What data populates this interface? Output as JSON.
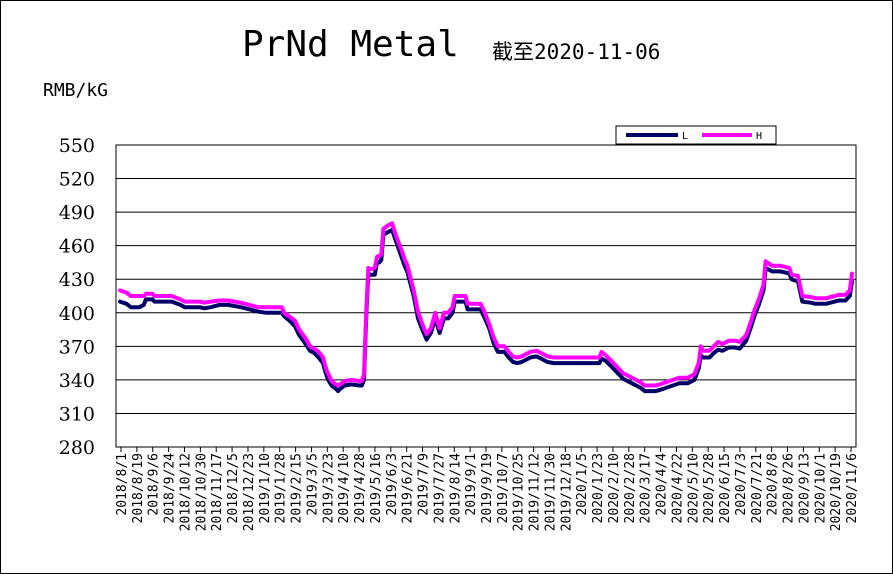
{
  "chart_data": {
    "type": "line",
    "title": "PrNd Metal",
    "subtitle": "截至2020-11-06",
    "ylabel": "RMB/kG",
    "ylim": [
      280,
      550
    ],
    "yticks": [
      550,
      520,
      490,
      460,
      430,
      400,
      370,
      340,
      310,
      280
    ],
    "grid": true,
    "legend_position": "top-right",
    "x_tick_labels": [
      "2018/8/1",
      "2018/8/19",
      "2018/9/6",
      "2018/9/24",
      "2018/10/12",
      "2018/10/30",
      "2018/11/17",
      "2018/12/5",
      "2018/12/23",
      "2019/1/10",
      "2019/1/28",
      "2019/2/15",
      "2019/3/5",
      "2019/3/23",
      "2019/4/10",
      "2019/4/28",
      "2019/5/16",
      "2019/6/3",
      "2019/6/21",
      "2019/7/9",
      "2019/7/27",
      "2019/8/14",
      "2019/9/1",
      "2019/9/19",
      "2019/10/7",
      "2019/10/25",
      "2019/11/12",
      "2019/11/30",
      "2019/12/18",
      "2020/1/5",
      "2020/1/23",
      "2020/2/10",
      "2020/2/28",
      "2020/3/17",
      "2020/4/4",
      "2020/4/22",
      "2020/5/10",
      "2020/5/28",
      "2020/6/15",
      "2020/7/3",
      "2020/7/21",
      "2020/8/8",
      "2020/8/26",
      "2020/9/13",
      "2020/10/1",
      "2020/10/19",
      "2020/11/6"
    ],
    "series": [
      {
        "name": "L",
        "color": "#000066",
        "points": [
          [
            0,
            410
          ],
          [
            3,
            408
          ],
          [
            5,
            405
          ],
          [
            9,
            405
          ],
          [
            11,
            407
          ],
          [
            12,
            412
          ],
          [
            15,
            412
          ],
          [
            16,
            410
          ],
          [
            24,
            410
          ],
          [
            28,
            407
          ],
          [
            30,
            405
          ],
          [
            37,
            405
          ],
          [
            39,
            404
          ],
          [
            42,
            405
          ],
          [
            46,
            407
          ],
          [
            50,
            407
          ],
          [
            56,
            405
          ],
          [
            60,
            403
          ],
          [
            64,
            401
          ],
          [
            68,
            400
          ],
          [
            75,
            400
          ],
          [
            76,
            397
          ],
          [
            79,
            392
          ],
          [
            81,
            388
          ],
          [
            83,
            380
          ],
          [
            86,
            372
          ],
          [
            88,
            366
          ],
          [
            90,
            364
          ],
          [
            92,
            360
          ],
          [
            94,
            355
          ],
          [
            95,
            348
          ],
          [
            96,
            342
          ],
          [
            97,
            338
          ],
          [
            98,
            335
          ],
          [
            100,
            332
          ],
          [
            101,
            330
          ],
          [
            102,
            332
          ],
          [
            104,
            335
          ],
          [
            107,
            336
          ],
          [
            111,
            335
          ],
          [
            112,
            335
          ],
          [
            113,
            340
          ],
          [
            114,
            395
          ],
          [
            115,
            435
          ],
          [
            116,
            434
          ],
          [
            118,
            434
          ],
          [
            119,
            445
          ],
          [
            120,
            445
          ],
          [
            121,
            447
          ],
          [
            122,
            470
          ],
          [
            124,
            472
          ],
          [
            126,
            474
          ],
          [
            128,
            463
          ],
          [
            130,
            452
          ],
          [
            132,
            441
          ],
          [
            133,
            437
          ],
          [
            136,
            415
          ],
          [
            138,
            395
          ],
          [
            140,
            385
          ],
          [
            142,
            376
          ],
          [
            144,
            382
          ],
          [
            146,
            395
          ],
          [
            148,
            382
          ],
          [
            150,
            395
          ],
          [
            152,
            395
          ],
          [
            154,
            400
          ],
          [
            155,
            410
          ],
          [
            158,
            410
          ],
          [
            160,
            410
          ],
          [
            161,
            403
          ],
          [
            164,
            403
          ],
          [
            167,
            403
          ],
          [
            169,
            395
          ],
          [
            171,
            386
          ],
          [
            173,
            373
          ],
          [
            175,
            365
          ],
          [
            178,
            365
          ],
          [
            180,
            360
          ],
          [
            182,
            356
          ],
          [
            184,
            355
          ],
          [
            186,
            356
          ],
          [
            188,
            358
          ],
          [
            190,
            360
          ],
          [
            193,
            361
          ],
          [
            195,
            359
          ],
          [
            198,
            356
          ],
          [
            201,
            355
          ],
          [
            204,
            355
          ],
          [
            208,
            355
          ],
          [
            212,
            355
          ],
          [
            216,
            355
          ],
          [
            220,
            355
          ],
          [
            222,
            355
          ],
          [
            223,
            359
          ],
          [
            225,
            357
          ],
          [
            227,
            353
          ],
          [
            229,
            349
          ],
          [
            231,
            345
          ],
          [
            233,
            341
          ],
          [
            235,
            339
          ],
          [
            237,
            337
          ],
          [
            239,
            335
          ],
          [
            241,
            333
          ],
          [
            243,
            330
          ],
          [
            245,
            330
          ],
          [
            248,
            330
          ],
          [
            250,
            331
          ],
          [
            253,
            333
          ],
          [
            256,
            335
          ],
          [
            259,
            337
          ],
          [
            263,
            337
          ],
          [
            266,
            340
          ],
          [
            268,
            350
          ],
          [
            269,
            362
          ],
          [
            270,
            360
          ],
          [
            271,
            360
          ],
          [
            273,
            360
          ],
          [
            275,
            364
          ],
          [
            277,
            367
          ],
          [
            279,
            366
          ],
          [
            282,
            369
          ],
          [
            285,
            369
          ],
          [
            287,
            368
          ],
          [
            290,
            375
          ],
          [
            292,
            386
          ],
          [
            294,
            398
          ],
          [
            296,
            408
          ],
          [
            298,
            420
          ],
          [
            299,
            440
          ],
          [
            302,
            437
          ],
          [
            306,
            437
          ],
          [
            310,
            435
          ],
          [
            311,
            430
          ],
          [
            314,
            428
          ],
          [
            316,
            410
          ],
          [
            320,
            409
          ],
          [
            322,
            408
          ],
          [
            327,
            408
          ],
          [
            331,
            410
          ],
          [
            333,
            411
          ],
          [
            336,
            411
          ],
          [
            338,
            415
          ],
          [
            339,
            428
          ]
        ]
      },
      {
        "name": "H",
        "color": "#ff00ff",
        "points": [
          [
            0,
            420
          ],
          [
            3,
            418
          ],
          [
            5,
            415
          ],
          [
            9,
            415
          ],
          [
            11,
            415
          ],
          [
            12,
            417
          ],
          [
            15,
            417
          ],
          [
            16,
            415
          ],
          [
            24,
            415
          ],
          [
            28,
            412
          ],
          [
            30,
            410
          ],
          [
            37,
            410
          ],
          [
            39,
            409
          ],
          [
            42,
            410
          ],
          [
            46,
            411
          ],
          [
            50,
            411
          ],
          [
            56,
            409
          ],
          [
            60,
            407
          ],
          [
            64,
            405
          ],
          [
            68,
            405
          ],
          [
            75,
            405
          ],
          [
            76,
            400
          ],
          [
            79,
            396
          ],
          [
            81,
            393
          ],
          [
            83,
            385
          ],
          [
            86,
            377
          ],
          [
            88,
            370
          ],
          [
            90,
            368
          ],
          [
            92,
            365
          ],
          [
            94,
            360
          ],
          [
            95,
            353
          ],
          [
            96,
            347
          ],
          [
            97,
            343
          ],
          [
            98,
            339
          ],
          [
            100,
            336
          ],
          [
            101,
            335
          ],
          [
            102,
            336
          ],
          [
            104,
            339
          ],
          [
            107,
            340
          ],
          [
            111,
            339
          ],
          [
            112,
            339
          ],
          [
            113,
            345
          ],
          [
            114,
            400
          ],
          [
            115,
            440
          ],
          [
            116,
            439
          ],
          [
            118,
            440
          ],
          [
            119,
            450
          ],
          [
            120,
            451
          ],
          [
            121,
            452
          ],
          [
            122,
            475
          ],
          [
            124,
            478
          ],
          [
            126,
            480
          ],
          [
            128,
            468
          ],
          [
            130,
            458
          ],
          [
            132,
            447
          ],
          [
            133,
            443
          ],
          [
            136,
            420
          ],
          [
            138,
            401
          ],
          [
            140,
            390
          ],
          [
            142,
            381
          ],
          [
            144,
            386
          ],
          [
            146,
            400
          ],
          [
            148,
            386
          ],
          [
            150,
            400
          ],
          [
            152,
            400
          ],
          [
            154,
            405
          ],
          [
            155,
            415
          ],
          [
            158,
            415
          ],
          [
            160,
            415
          ],
          [
            161,
            408
          ],
          [
            164,
            408
          ],
          [
            167,
            408
          ],
          [
            169,
            400
          ],
          [
            171,
            390
          ],
          [
            173,
            378
          ],
          [
            175,
            370
          ],
          [
            178,
            370
          ],
          [
            180,
            365
          ],
          [
            182,
            361
          ],
          [
            184,
            360
          ],
          [
            186,
            361
          ],
          [
            188,
            363
          ],
          [
            190,
            365
          ],
          [
            193,
            366
          ],
          [
            195,
            364
          ],
          [
            198,
            361
          ],
          [
            201,
            360
          ],
          [
            204,
            360
          ],
          [
            208,
            360
          ],
          [
            212,
            360
          ],
          [
            216,
            360
          ],
          [
            220,
            360
          ],
          [
            222,
            360
          ],
          [
            223,
            365
          ],
          [
            225,
            362
          ],
          [
            227,
            358
          ],
          [
            229,
            354
          ],
          [
            231,
            350
          ],
          [
            233,
            346
          ],
          [
            235,
            344
          ],
          [
            237,
            342
          ],
          [
            239,
            340
          ],
          [
            241,
            338
          ],
          [
            243,
            335
          ],
          [
            245,
            335
          ],
          [
            248,
            335
          ],
          [
            250,
            336
          ],
          [
            253,
            338
          ],
          [
            256,
            340
          ],
          [
            259,
            342
          ],
          [
            263,
            342
          ],
          [
            266,
            345
          ],
          [
            268,
            355
          ],
          [
            269,
            370
          ],
          [
            270,
            366
          ],
          [
            271,
            366
          ],
          [
            273,
            366
          ],
          [
            275,
            370
          ],
          [
            277,
            374
          ],
          [
            279,
            372
          ],
          [
            282,
            375
          ],
          [
            285,
            375
          ],
          [
            287,
            374
          ],
          [
            290,
            380
          ],
          [
            292,
            391
          ],
          [
            294,
            403
          ],
          [
            296,
            413
          ],
          [
            298,
            425
          ],
          [
            299,
            446
          ],
          [
            302,
            442
          ],
          [
            306,
            442
          ],
          [
            310,
            440
          ],
          [
            311,
            434
          ],
          [
            314,
            433
          ],
          [
            316,
            415
          ],
          [
            320,
            414
          ],
          [
            322,
            413
          ],
          [
            327,
            413
          ],
          [
            331,
            415
          ],
          [
            333,
            416
          ],
          [
            336,
            416
          ],
          [
            338,
            420
          ],
          [
            339,
            435
          ]
        ]
      }
    ]
  }
}
